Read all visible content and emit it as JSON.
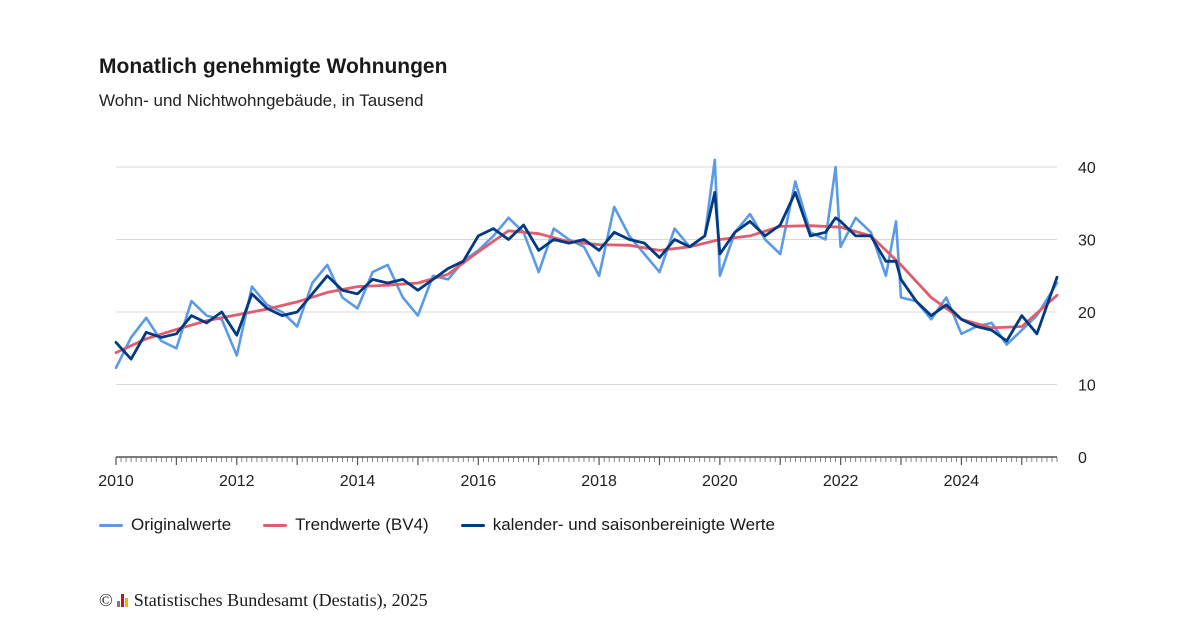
{
  "title": "Monatlich genehmigte Wohnungen",
  "subtitle": "Wohn- und Nichtwohngebäude, in Tausend",
  "source": {
    "copyright_symbol": "©",
    "text": "Statistisches Bundesamt (Destatis), 2025",
    "logo_colors": [
      "#7a7a7a",
      "#c8102e",
      "#f2b600"
    ]
  },
  "chart_data": {
    "type": "line",
    "title": "Monatlich genehmigte Wohnungen",
    "subtitle": "Wohn- und Nichtwohngebäude, in Tausend",
    "xlabel": "",
    "ylabel": "",
    "ylim": [
      0,
      40
    ],
    "yticks": [
      "0",
      "10",
      "20",
      "30",
      "40"
    ],
    "xticks": [
      "2010",
      "2012",
      "2014",
      "2016",
      "2018",
      "2020",
      "2022",
      "2024"
    ],
    "xrange": [
      "2010-01",
      "2025-08"
    ],
    "grid": true,
    "legend_position": "bottom",
    "series": [
      {
        "name": "Originalwerte",
        "color": "#5b9be6",
        "x": [
          "2010-01",
          "2010-04",
          "2010-07",
          "2010-10",
          "2011-01",
          "2011-04",
          "2011-07",
          "2011-10",
          "2012-01",
          "2012-04",
          "2012-07",
          "2012-10",
          "2013-01",
          "2013-04",
          "2013-07",
          "2013-10",
          "2014-01",
          "2014-04",
          "2014-07",
          "2014-10",
          "2015-01",
          "2015-04",
          "2015-07",
          "2015-10",
          "2016-01",
          "2016-04",
          "2016-07",
          "2016-10",
          "2017-01",
          "2017-04",
          "2017-07",
          "2017-10",
          "2018-01",
          "2018-04",
          "2018-07",
          "2018-10",
          "2019-01",
          "2019-04",
          "2019-07",
          "2019-10",
          "2019-12",
          "2020-01",
          "2020-04",
          "2020-07",
          "2020-10",
          "2021-01",
          "2021-04",
          "2021-07",
          "2021-10",
          "2021-12",
          "2022-01",
          "2022-04",
          "2022-07",
          "2022-10",
          "2022-12",
          "2023-01",
          "2023-04",
          "2023-07",
          "2023-10",
          "2024-01",
          "2024-04",
          "2024-07",
          "2024-10",
          "2025-01",
          "2025-04",
          "2025-08"
        ],
        "values": [
          12.3,
          16.5,
          19.2,
          16.0,
          15.0,
          21.5,
          19.5,
          19.0,
          14.0,
          23.5,
          21.0,
          20.0,
          18.0,
          24.0,
          26.5,
          22.0,
          20.5,
          25.5,
          26.5,
          22.0,
          19.5,
          25.0,
          24.5,
          27.0,
          28.5,
          30.5,
          33.0,
          31.0,
          25.5,
          31.5,
          30.0,
          29.0,
          25.0,
          34.5,
          30.5,
          28.0,
          25.5,
          31.5,
          29.0,
          30.5,
          41.0,
          25.0,
          31.0,
          33.5,
          30.0,
          28.0,
          38.0,
          31.0,
          30.0,
          40.0,
          29.0,
          33.0,
          31.0,
          25.0,
          32.5,
          22.0,
          21.5,
          19.0,
          22.0,
          17.0,
          18.0,
          18.5,
          15.5,
          17.5,
          19.5,
          24.0
        ]
      },
      {
        "name": "Trendwerte (BV4)",
        "color": "#e05c6e",
        "x": [
          "2010-01",
          "2010-07",
          "2011-01",
          "2011-07",
          "2012-01",
          "2012-07",
          "2013-01",
          "2013-07",
          "2014-01",
          "2014-07",
          "2015-01",
          "2015-07",
          "2016-01",
          "2016-07",
          "2017-01",
          "2017-07",
          "2018-01",
          "2018-07",
          "2019-01",
          "2019-07",
          "2020-01",
          "2020-07",
          "2021-01",
          "2021-07",
          "2022-01",
          "2022-07",
          "2023-01",
          "2023-07",
          "2024-01",
          "2024-07",
          "2025-01",
          "2025-08"
        ],
        "values": [
          14.4,
          16.3,
          17.6,
          18.8,
          19.6,
          20.4,
          21.4,
          22.7,
          23.5,
          23.7,
          24.0,
          25.2,
          28.3,
          31.2,
          30.8,
          29.7,
          29.3,
          29.2,
          28.5,
          29.0,
          30.0,
          30.5,
          31.8,
          31.9,
          31.7,
          30.5,
          26.5,
          22.0,
          19.0,
          17.8,
          18.0,
          22.3
        ]
      },
      {
        "name": "kalender- und saisonbereinigte Werte",
        "color": "#003a80",
        "x": [
          "2010-01",
          "2010-04",
          "2010-07",
          "2010-10",
          "2011-01",
          "2011-04",
          "2011-07",
          "2011-10",
          "2012-01",
          "2012-04",
          "2012-07",
          "2012-10",
          "2013-01",
          "2013-04",
          "2013-07",
          "2013-10",
          "2014-01",
          "2014-04",
          "2014-07",
          "2014-10",
          "2015-01",
          "2015-04",
          "2015-07",
          "2015-10",
          "2016-01",
          "2016-04",
          "2016-07",
          "2016-10",
          "2017-01",
          "2017-04",
          "2017-07",
          "2017-10",
          "2018-01",
          "2018-04",
          "2018-07",
          "2018-10",
          "2019-01",
          "2019-04",
          "2019-07",
          "2019-10",
          "2019-12",
          "2020-01",
          "2020-04",
          "2020-07",
          "2020-10",
          "2021-01",
          "2021-04",
          "2021-07",
          "2021-10",
          "2021-12",
          "2022-01",
          "2022-04",
          "2022-07",
          "2022-10",
          "2022-12",
          "2023-01",
          "2023-04",
          "2023-07",
          "2023-10",
          "2024-01",
          "2024-04",
          "2024-07",
          "2024-10",
          "2025-01",
          "2025-04",
          "2025-08"
        ],
        "values": [
          15.8,
          13.5,
          17.2,
          16.5,
          17.0,
          19.5,
          18.5,
          20.0,
          16.8,
          22.5,
          20.5,
          19.5,
          20.0,
          22.5,
          25.0,
          23.0,
          22.5,
          24.5,
          24.0,
          24.5,
          23.0,
          24.5,
          26.0,
          27.0,
          30.5,
          31.5,
          30.0,
          32.0,
          28.5,
          30.0,
          29.5,
          30.0,
          28.5,
          31.0,
          30.0,
          29.5,
          27.5,
          30.0,
          29.0,
          30.5,
          36.5,
          28.0,
          31.0,
          32.5,
          30.5,
          32.0,
          36.5,
          30.5,
          31.0,
          33.0,
          32.5,
          30.5,
          30.5,
          27.0,
          27.0,
          24.5,
          21.5,
          19.5,
          21.0,
          19.0,
          18.0,
          17.5,
          16.0,
          19.5,
          17.0,
          24.8
        ]
      }
    ]
  }
}
